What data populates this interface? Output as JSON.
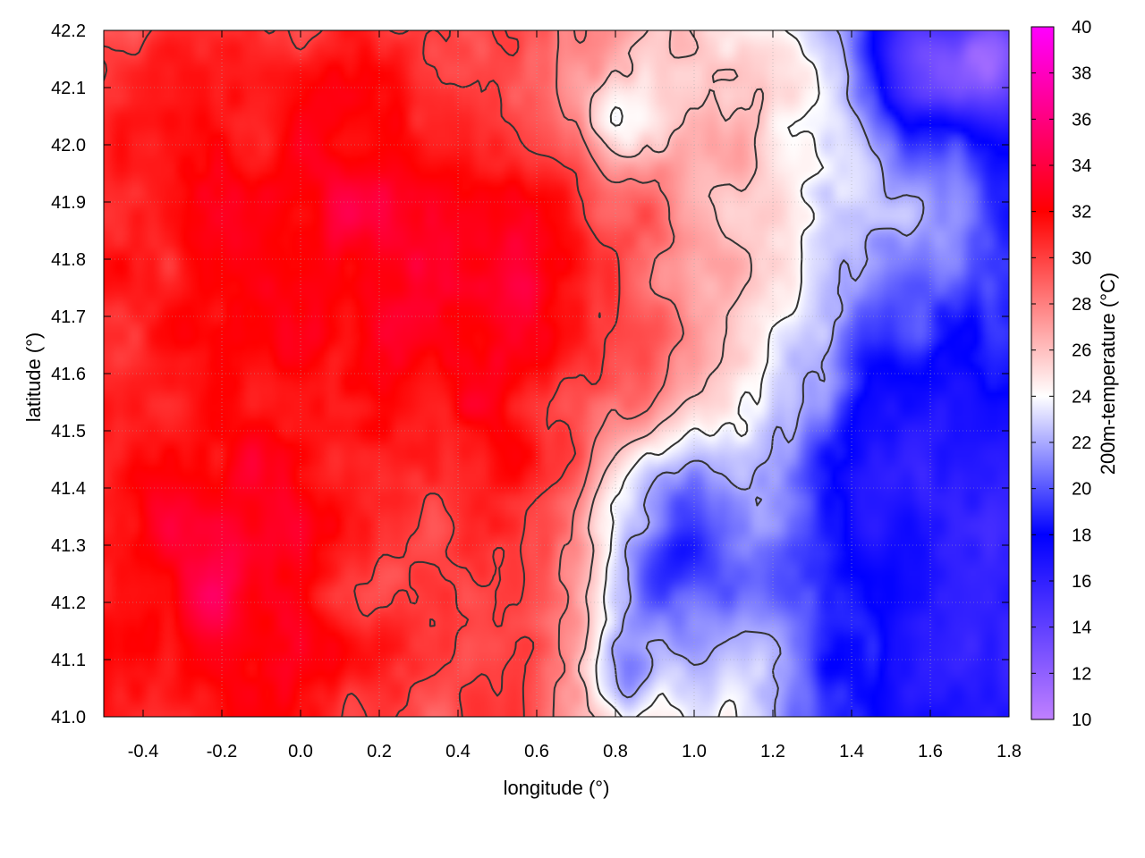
{
  "chart_data": {
    "type": "heatmap",
    "title": "",
    "xlabel": "longitude (°)",
    "ylabel": "latitude (°)",
    "colorbar_label": "200m-temperature (°C)",
    "xlim": [
      -0.5,
      1.8
    ],
    "ylim": [
      41.0,
      42.2
    ],
    "color_range": [
      10,
      40
    ],
    "x_ticks": [
      "-0.4",
      "-0.2",
      "0.0",
      "0.2",
      "0.4",
      "0.6",
      "0.8",
      "1.0",
      "1.2",
      "1.4",
      "1.6",
      "1.8"
    ],
    "y_ticks": [
      "41.0",
      "41.1",
      "41.2",
      "41.3",
      "41.4",
      "41.5",
      "41.6",
      "41.7",
      "41.8",
      "41.9",
      "42.0",
      "42.1",
      "42.2"
    ],
    "colorbar_ticks": [
      "10",
      "12",
      "14",
      "16",
      "18",
      "20",
      "22",
      "24",
      "26",
      "28",
      "30",
      "32",
      "34",
      "36",
      "38",
      "40"
    ],
    "palette": [
      {
        "value": 10,
        "color": "#c080ff"
      },
      {
        "value": 18,
        "color": "#0000ff"
      },
      {
        "value": 24,
        "color": "#ffffff"
      },
      {
        "value": 32,
        "color": "#ff0000"
      },
      {
        "value": 40,
        "color": "#ff00ff"
      }
    ],
    "grid": true,
    "contour_color": "#333333",
    "hot_spots": [
      {
        "lon": 0.15,
        "lat": 41.85,
        "temp": 32.5,
        "radius": 0.38
      },
      {
        "lon": -0.3,
        "lat": 41.3,
        "temp": 32.0,
        "radius": 0.32
      },
      {
        "lon": 0.6,
        "lat": 41.72,
        "temp": 31.5,
        "radius": 0.3
      },
      {
        "lon": -0.1,
        "lat": 41.15,
        "temp": 31.0,
        "radius": 0.25
      },
      {
        "lon": -0.35,
        "lat": 41.95,
        "temp": 30.5,
        "radius": 0.3
      },
      {
        "lon": 0.95,
        "lat": 41.8,
        "temp": 30.0,
        "radius": 0.25
      },
      {
        "lon": 0.8,
        "lat": 42.1,
        "temp": 30.0,
        "radius": 0.15
      }
    ],
    "cold_spots": [
      {
        "lon": 0.95,
        "lat": 41.3,
        "temp": 16.5,
        "radius": 0.18
      },
      {
        "lon": 1.55,
        "lat": 42.15,
        "temp": 17.0,
        "radius": 0.15
      },
      {
        "lon": 1.75,
        "lat": 42.15,
        "temp": 17.5,
        "radius": 0.12
      },
      {
        "lon": 0.8,
        "lat": 42.05,
        "temp": 20.0,
        "radius": 0.1
      },
      {
        "lon": 1.5,
        "lat": 41.45,
        "temp": 21.5,
        "radius": 0.3
      },
      {
        "lon": 1.5,
        "lat": 41.1,
        "temp": 22.0,
        "radius": 0.45
      },
      {
        "lon": 0.83,
        "lat": 41.08,
        "temp": 19.5,
        "radius": 0.1
      }
    ]
  }
}
